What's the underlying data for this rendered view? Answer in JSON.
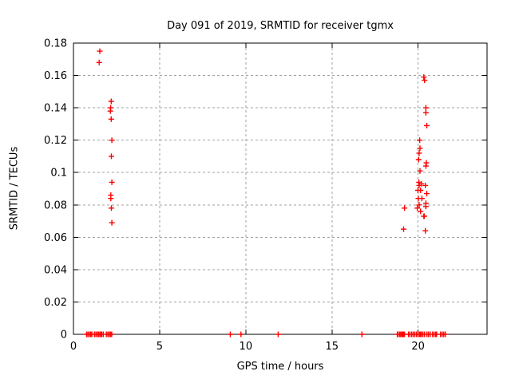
{
  "chart_data": {
    "type": "scatter",
    "title": "Day 091 of 2019, SRMTID for receiver tgmx",
    "xlabel": "GPS time / hours",
    "ylabel": "SRMTID / TECUs",
    "xlim": [
      0,
      24
    ],
    "ylim": [
      0,
      0.18
    ],
    "xticks": [
      {
        "v": 0,
        "label": "0"
      },
      {
        "v": 5,
        "label": "5"
      },
      {
        "v": 10,
        "label": "10"
      },
      {
        "v": 15,
        "label": "15"
      },
      {
        "v": 20,
        "label": "20"
      }
    ],
    "yticks": [
      {
        "v": 0,
        "label": "0"
      },
      {
        "v": 0.02,
        "label": "0.02"
      },
      {
        "v": 0.04,
        "label": "0.04"
      },
      {
        "v": 0.06,
        "label": "0.06"
      },
      {
        "v": 0.08,
        "label": "0.08"
      },
      {
        "v": 0.1,
        "label": "0.1"
      },
      {
        "v": 0.12,
        "label": "0.12"
      },
      {
        "v": 0.14,
        "label": "0.14"
      },
      {
        "v": 0.16,
        "label": "0.16"
      },
      {
        "v": 0.18,
        "label": "0.18"
      }
    ],
    "grid": true,
    "legend": "none",
    "marker": {
      "shape": "plus",
      "color": "#ff0000",
      "size": 7
    },
    "series": [
      {
        "name": "SRMTID",
        "points": [
          [
            0.76,
            0
          ],
          [
            0.84,
            0
          ],
          [
            0.92,
            0
          ],
          [
            1.0,
            0
          ],
          [
            1.07,
            0
          ],
          [
            1.22,
            0
          ],
          [
            1.3,
            0
          ],
          [
            1.38,
            0
          ],
          [
            1.46,
            0
          ],
          [
            1.54,
            0
          ],
          [
            1.61,
            0
          ],
          [
            1.64,
            0
          ],
          [
            1.73,
            0
          ],
          [
            1.91,
            0
          ],
          [
            1.99,
            0
          ],
          [
            2.07,
            0
          ],
          [
            2.15,
            0
          ],
          [
            2.22,
            0
          ],
          [
            9.1,
            0
          ],
          [
            9.72,
            0
          ],
          [
            11.88,
            0
          ],
          [
            16.74,
            0
          ],
          [
            18.79,
            0
          ],
          [
            18.84,
            0
          ],
          [
            18.93,
            0
          ],
          [
            19.0,
            0
          ],
          [
            19.07,
            0
          ],
          [
            19.12,
            0
          ],
          [
            19.16,
            0
          ],
          [
            19.21,
            0
          ],
          [
            19.44,
            0
          ],
          [
            19.53,
            0
          ],
          [
            19.63,
            0
          ],
          [
            19.72,
            0
          ],
          [
            19.81,
            0
          ],
          [
            19.91,
            0
          ],
          [
            20.0,
            0
          ],
          [
            20.09,
            0
          ],
          [
            20.14,
            0
          ],
          [
            20.19,
            0
          ],
          [
            20.28,
            0
          ],
          [
            20.37,
            0
          ],
          [
            20.51,
            0
          ],
          [
            20.6,
            0
          ],
          [
            20.7,
            0
          ],
          [
            20.84,
            0
          ],
          [
            20.93,
            0
          ],
          [
            21.02,
            0
          ],
          [
            21.07,
            0
          ],
          [
            21.3,
            0
          ],
          [
            21.4,
            0
          ],
          [
            21.49,
            0
          ],
          [
            21.58,
            0
          ],
          [
            1.49,
            0.168
          ],
          [
            1.53,
            0.175
          ],
          [
            2.19,
            0.144
          ],
          [
            2.16,
            0.14
          ],
          [
            2.14,
            0.138
          ],
          [
            2.19,
            0.133
          ],
          [
            2.23,
            0.12
          ],
          [
            2.2,
            0.11
          ],
          [
            2.23,
            0.094
          ],
          [
            2.17,
            0.086
          ],
          [
            2.17,
            0.084
          ],
          [
            2.2,
            0.078
          ],
          [
            2.23,
            0.069
          ],
          [
            19.16,
            0.065
          ],
          [
            19.21,
            0.078
          ],
          [
            19.95,
            0.078
          ],
          [
            19.99,
            0.089
          ],
          [
            20.01,
            0.084
          ],
          [
            20.03,
            0.108
          ],
          [
            20.05,
            0.094
          ],
          [
            20.06,
            0.112
          ],
          [
            20.06,
            0.092
          ],
          [
            20.06,
            0.08
          ],
          [
            20.09,
            0.12
          ],
          [
            20.11,
            0.115
          ],
          [
            20.11,
            0.101
          ],
          [
            20.14,
            0.089
          ],
          [
            20.14,
            0.076
          ],
          [
            20.19,
            0.093
          ],
          [
            20.22,
            0.084
          ],
          [
            20.33,
            0.159
          ],
          [
            20.37,
            0.157
          ],
          [
            20.33,
            0.073
          ],
          [
            20.36,
            0.073
          ],
          [
            20.42,
            0.092
          ],
          [
            20.42,
            0.064
          ],
          [
            20.45,
            0.14
          ],
          [
            20.45,
            0.137
          ],
          [
            20.45,
            0.104
          ],
          [
            20.45,
            0.081
          ],
          [
            20.45,
            0.079
          ],
          [
            20.48,
            0.106
          ],
          [
            20.5,
            0.129
          ],
          [
            20.5,
            0.087
          ]
        ]
      }
    ]
  },
  "colors": {
    "background": "#ffffff",
    "border": "#000000",
    "grid": "#a0a0a0",
    "marker": "#ff0000",
    "text": "#000000"
  }
}
